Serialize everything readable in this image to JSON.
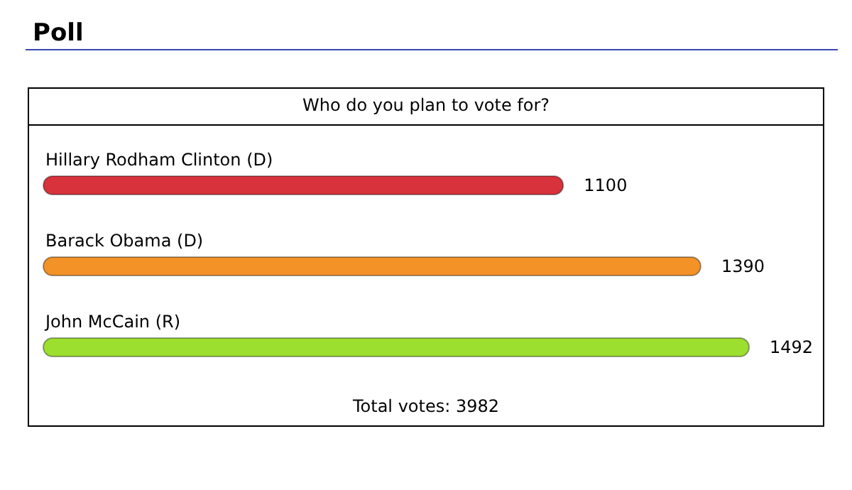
{
  "chart_data": {
    "type": "bar",
    "orientation": "horizontal",
    "title": "Poll",
    "subtitle": "Who do you plan to vote for?",
    "categories": [
      "Hillary Rodham Clinton (D)",
      "Barack Obama (D)",
      "John McCain (R)"
    ],
    "values": [
      1100,
      1390,
      1492
    ],
    "colors": [
      "#d8323c",
      "#f29227",
      "#9ddf2f"
    ],
    "data_labels": true,
    "annotations": [
      "Total votes: 3982"
    ]
  }
}
